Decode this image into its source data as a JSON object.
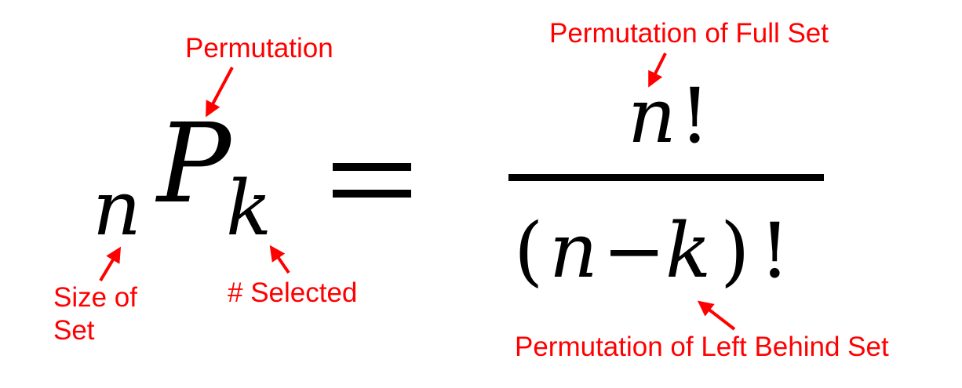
{
  "formula": {
    "left_sub": "n",
    "main": "P",
    "right_sub": "k",
    "numerator_var": "n",
    "numerator_op": "!",
    "denominator": {
      "open": "(",
      "var1": "n",
      "minus": "−",
      "var2": "k",
      "close": ")",
      "op": "!"
    }
  },
  "labels": {
    "permutation": "Permutation",
    "size_of_set_line1": "Size of",
    "size_of_set_line2": "Set",
    "selected": "# Selected",
    "full_set": "Permutation of Full Set",
    "left_behind": "Permutation of Left Behind Set"
  },
  "colors": {
    "annotation": "#ff0000",
    "math": "#000000",
    "background": "#ffffff"
  }
}
